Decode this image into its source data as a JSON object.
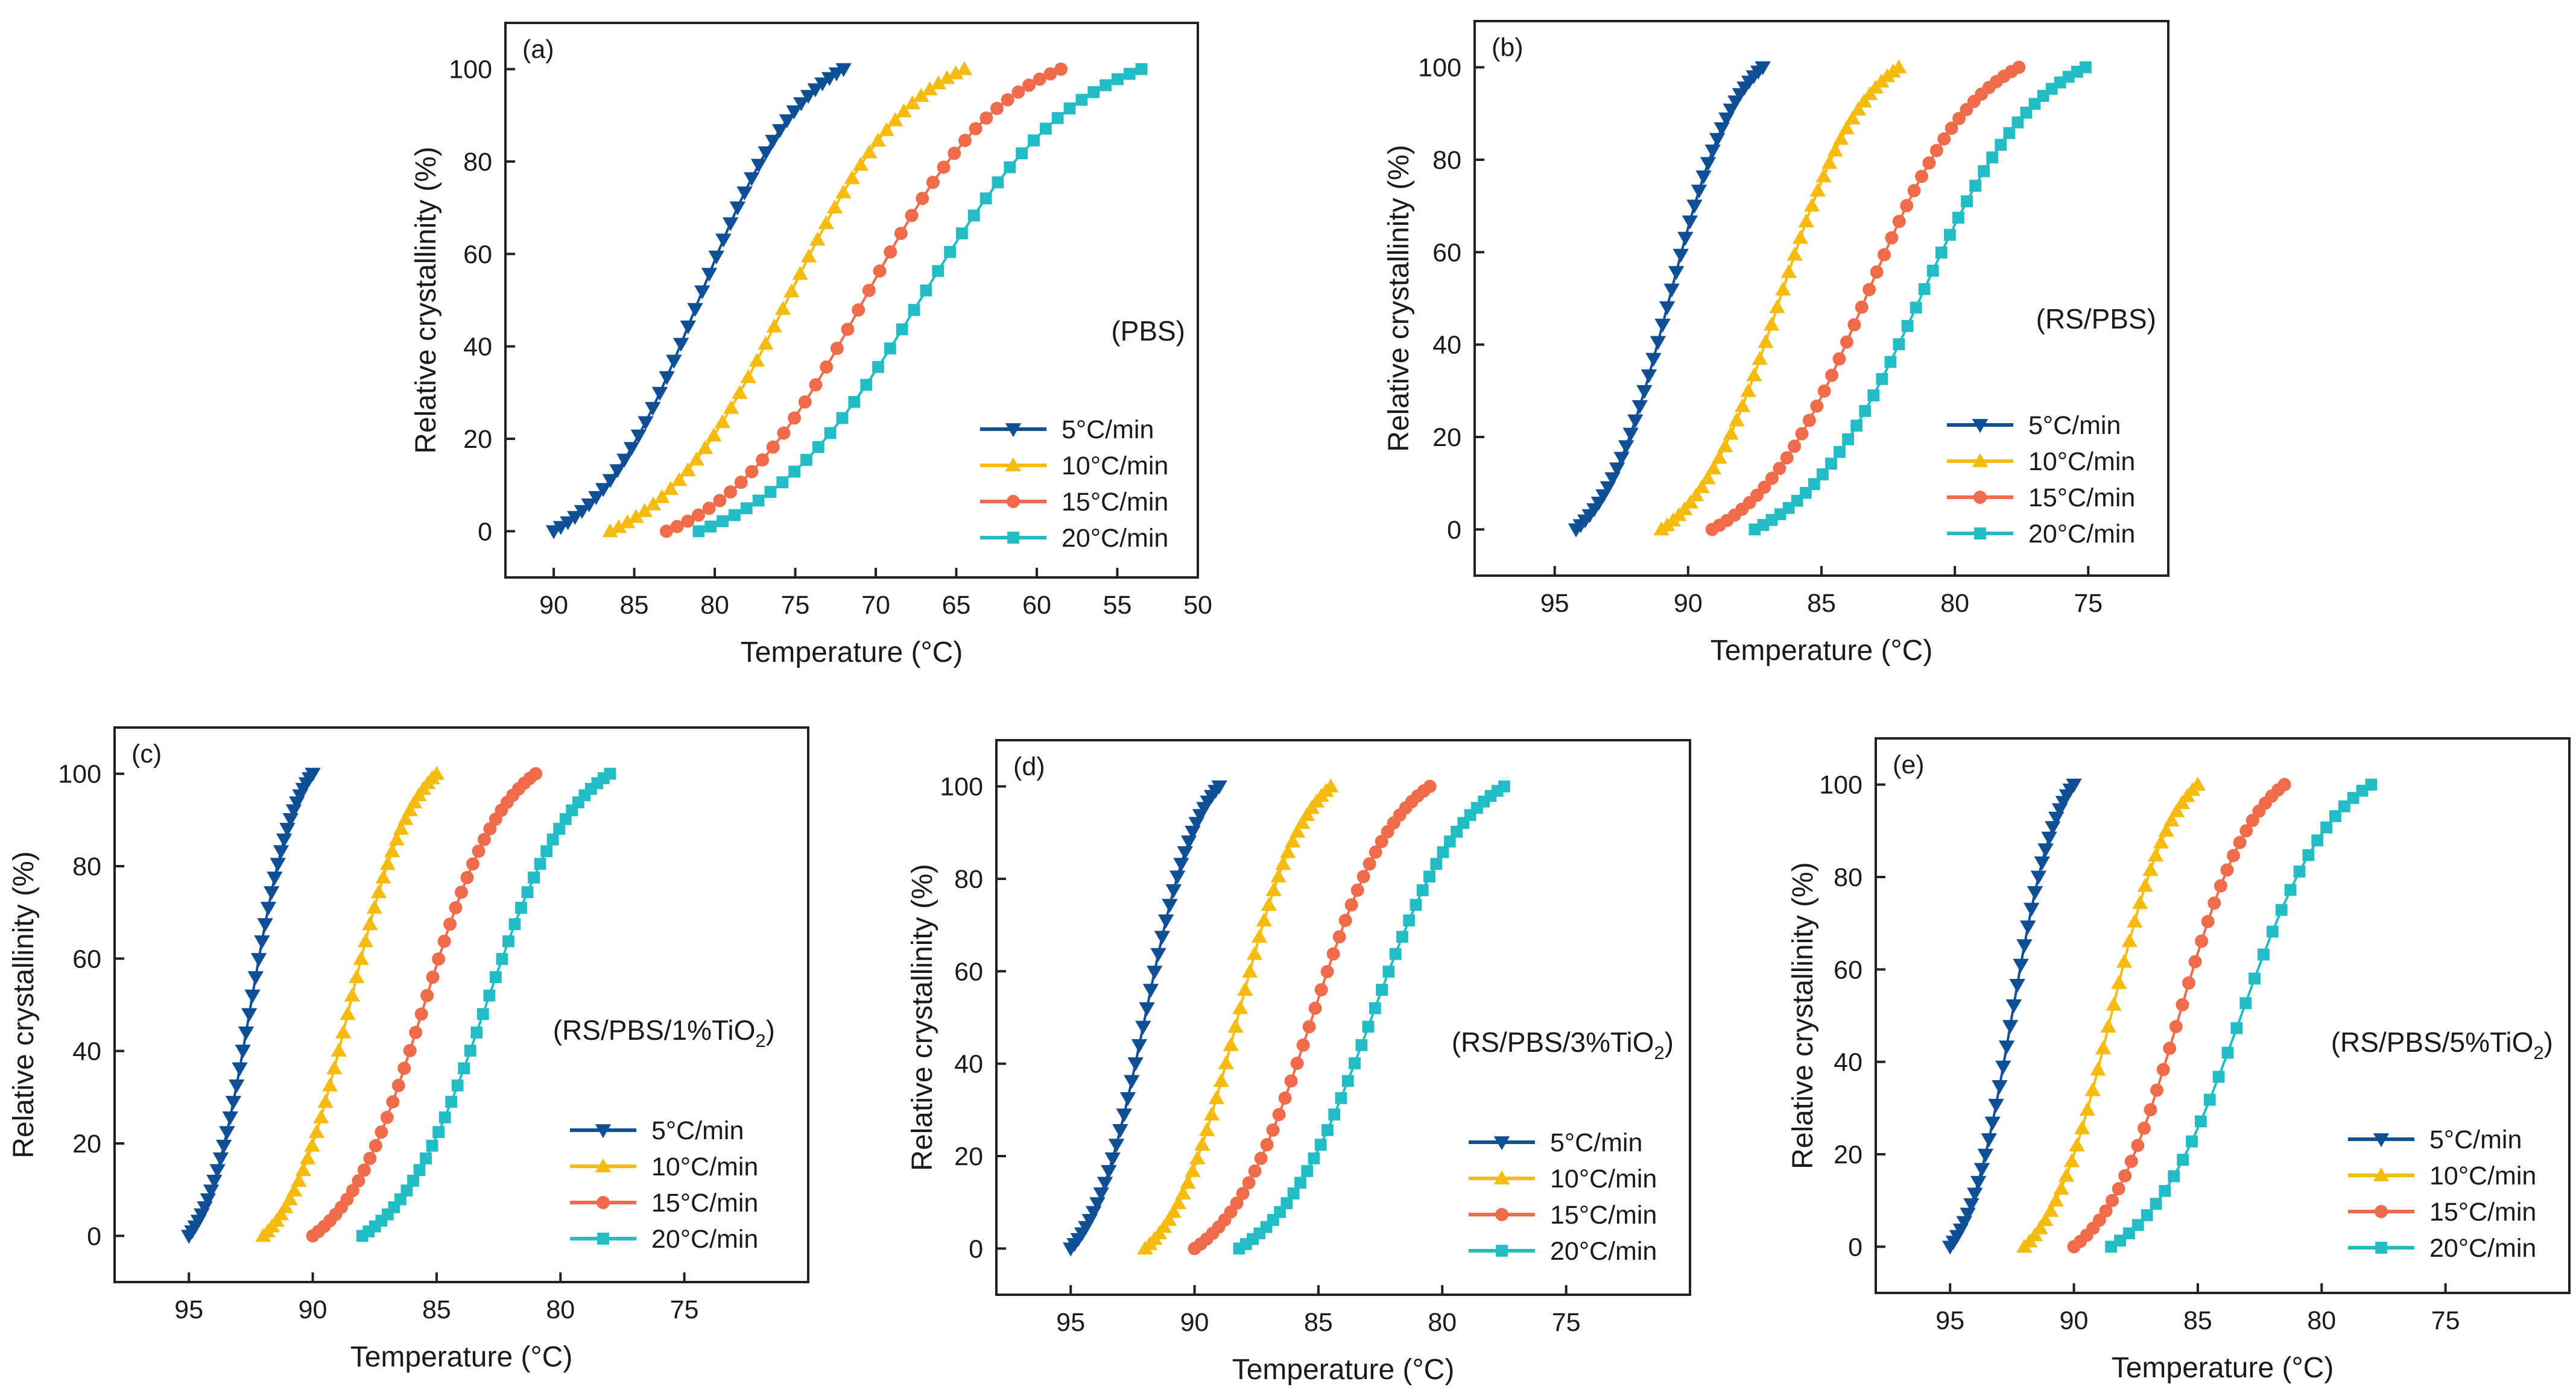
{
  "figure": {
    "xlabel": "Temperature (°C)",
    "ylabel": "Relative crystallinity (%)"
  },
  "legend_labels": [
    "5°C/min",
    "10°C/min",
    "15°C/min",
    "20°C/min"
  ],
  "colors": {
    "5°C/min": "#0f4f96",
    "10°C/min": "#f5bb0e",
    "15°C/min": "#ef6c4a",
    "20°C/min": "#22bcc4"
  },
  "markers": {
    "5°C/min": "triangle-down",
    "10°C/min": "triangle-up",
    "15°C/min": "circle",
    "20°C/min": "square"
  },
  "chart_data": [
    {
      "type": "line",
      "panel": "(a)",
      "sample": "(PBS)",
      "sample_sub": "",
      "sample_tail": "",
      "title": "",
      "xlabel": "Temperature (°C)",
      "ylabel": "Relative crystallinity (%)",
      "xlim": [
        93,
        50
      ],
      "ylim": [
        -10,
        110
      ],
      "xticks": [
        90,
        85,
        80,
        75,
        70,
        65,
        60,
        55,
        50
      ],
      "yticks": [
        0,
        20,
        40,
        60,
        80,
        100
      ],
      "x_direction": "reversed",
      "series": [
        {
          "name": "5°C/min",
          "onset": 90,
          "end": 72,
          "points": 42
        },
        {
          "name": "10°C/min",
          "onset": 86.5,
          "end": 64.5,
          "points": 42
        },
        {
          "name": "15°C/min",
          "onset": 83,
          "end": 58.5,
          "points": 38
        },
        {
          "name": "20°C/min",
          "onset": 81,
          "end": 53.5,
          "points": 38
        }
      ]
    },
    {
      "type": "line",
      "panel": "(b)",
      "sample": "(RS/PBS)",
      "sample_sub": "",
      "sample_tail": "",
      "title": "",
      "xlabel": "Temperature (°C)",
      "ylabel": "Relative crystallinity (%)",
      "xlim": [
        98,
        72
      ],
      "ylim": [
        -10,
        110
      ],
      "xticks": [
        95,
        90,
        85,
        80,
        75
      ],
      "yticks": [
        0,
        20,
        40,
        60,
        80,
        100
      ],
      "x_direction": "reversed",
      "series": [
        {
          "name": "5°C/min",
          "onset": 94.2,
          "end": 87.2,
          "points": 42
        },
        {
          "name": "10°C/min",
          "onset": 91,
          "end": 82.1,
          "points": 42
        },
        {
          "name": "15°C/min",
          "onset": 89.1,
          "end": 77.6,
          "points": 42
        },
        {
          "name": "20°C/min",
          "onset": 87.5,
          "end": 75.1,
          "points": 40
        }
      ]
    },
    {
      "type": "line",
      "panel": "(c)",
      "sample": "(RS/PBS/1%TiO",
      "sample_sub": "2",
      "sample_tail": ")",
      "title": "",
      "xlabel": "Temperature (°C)",
      "ylabel": "Relative crystallinity (%)",
      "xlim": [
        98,
        70
      ],
      "ylim": [
        -10,
        110
      ],
      "xticks": [
        95,
        90,
        85,
        80,
        75
      ],
      "yticks": [
        0,
        20,
        40,
        60,
        80,
        100
      ],
      "x_direction": "reversed",
      "series": [
        {
          "name": "5°C/min",
          "onset": 95,
          "end": 90,
          "points": 40
        },
        {
          "name": "10°C/min",
          "onset": 92,
          "end": 85,
          "points": 40
        },
        {
          "name": "15°C/min",
          "onset": 90,
          "end": 81,
          "points": 40
        },
        {
          "name": "20°C/min",
          "onset": 88,
          "end": 78,
          "points": 40
        }
      ]
    },
    {
      "type": "line",
      "panel": "(d)",
      "sample": "(RS/PBS/3%TiO",
      "sample_sub": "2",
      "sample_tail": ")",
      "title": "",
      "xlabel": "Temperature (°C)",
      "ylabel": "Relative crystallinity (%)",
      "xlim": [
        98,
        70
      ],
      "ylim": [
        -10,
        110
      ],
      "xticks": [
        95,
        90,
        85,
        80,
        75
      ],
      "yticks": [
        0,
        20,
        40,
        60,
        80,
        100
      ],
      "x_direction": "reversed",
      "series": [
        {
          "name": "5°C/min",
          "onset": 95,
          "end": 89,
          "points": 40
        },
        {
          "name": "10°C/min",
          "onset": 92,
          "end": 84.5,
          "points": 40
        },
        {
          "name": "15°C/min",
          "onset": 90,
          "end": 80.5,
          "points": 40
        },
        {
          "name": "20°C/min",
          "onset": 88.2,
          "end": 77.5,
          "points": 40
        }
      ]
    },
    {
      "type": "line",
      "panel": "(e)",
      "sample": "(RS/PBS/5%TiO",
      "sample_sub": "2",
      "sample_tail": ")",
      "title": "",
      "xlabel": "Temperature (°C)",
      "ylabel": "Relative crystallinity (%)",
      "xlim": [
        98,
        70
      ],
      "ylim": [
        -10,
        110
      ],
      "xticks": [
        95,
        90,
        85,
        80,
        75
      ],
      "yticks": [
        0,
        20,
        40,
        60,
        80,
        100
      ],
      "x_direction": "reversed",
      "series": [
        {
          "name": "5°C/min",
          "onset": 95,
          "end": 90,
          "points": 36
        },
        {
          "name": "10°C/min",
          "onset": 92,
          "end": 85,
          "points": 34
        },
        {
          "name": "15°C/min",
          "onset": 90,
          "end": 81.5,
          "points": 34
        },
        {
          "name": "20°C/min",
          "onset": 88.5,
          "end": 78,
          "points": 30
        }
      ]
    }
  ]
}
